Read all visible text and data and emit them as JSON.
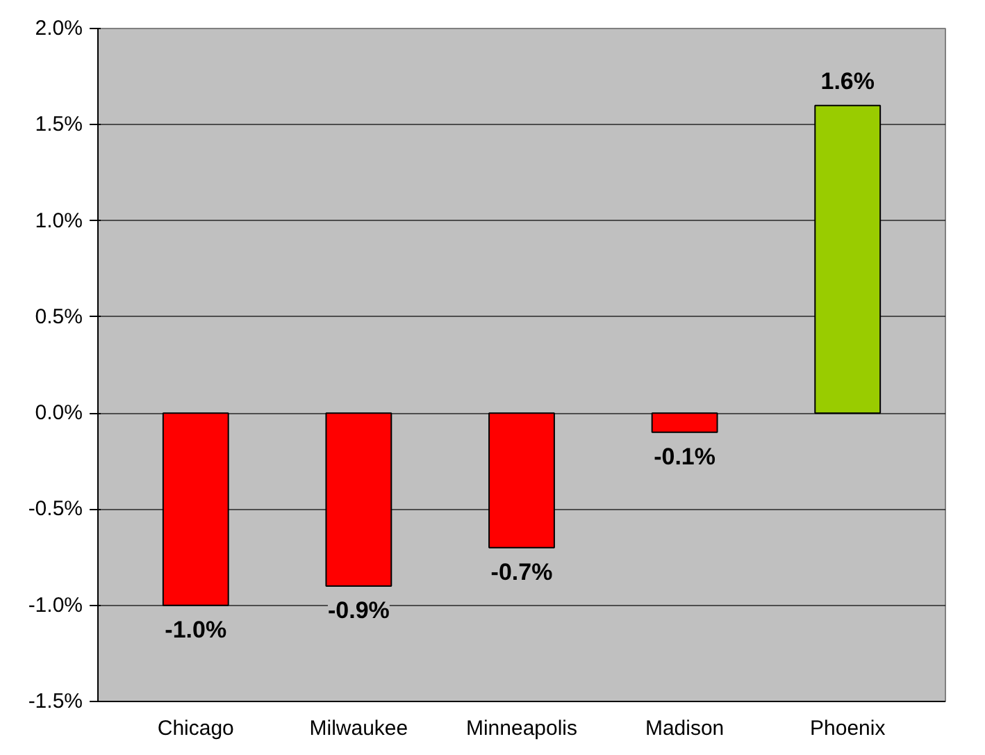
{
  "chart_data": {
    "type": "bar",
    "categories": [
      "Chicago",
      "Milwaukee",
      "Minneapolis",
      "Madison",
      "Phoenix"
    ],
    "values": [
      -1.0,
      -0.9,
      -0.7,
      -0.1,
      1.6
    ],
    "colors": [
      "#ff0000",
      "#ff0000",
      "#ff0000",
      "#ff0000",
      "#99cc00"
    ],
    "value_labels": [
      "-1.0%",
      "-0.9%",
      "-0.7%",
      "-0.1%",
      "1.6%"
    ],
    "ylim": [
      -1.5,
      2.0
    ],
    "yticks": [
      {
        "value": -1.5,
        "label": "-1.5%"
      },
      {
        "value": -1.0,
        "label": "-1.0%"
      },
      {
        "value": -0.5,
        "label": "-0.5%"
      },
      {
        "value": 0.0,
        "label": "0.0%"
      },
      {
        "value": 0.5,
        "label": "0.5%"
      },
      {
        "value": 1.0,
        "label": "1.0%"
      },
      {
        "value": 1.5,
        "label": "1.5%"
      },
      {
        "value": 2.0,
        "label": "2.0%"
      }
    ],
    "grid": "y"
  }
}
